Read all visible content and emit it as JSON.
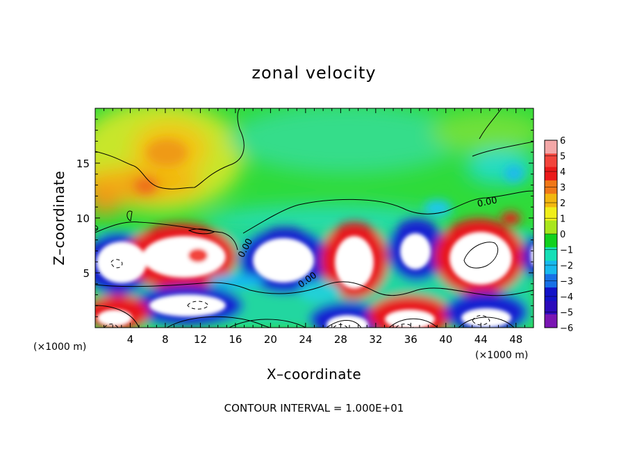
{
  "chart_data": {
    "type": "heatmap",
    "title": "zonal velocity",
    "xlabel": "X–coordinate",
    "ylabel": "Z–coordinate",
    "x_unit": "(×1000 m)",
    "z_unit": "(×1000 m)",
    "xlim": [
      0,
      50
    ],
    "ylim": [
      0,
      20
    ],
    "xticks": [
      "4",
      "8",
      "12",
      "16",
      "20",
      "24",
      "28",
      "32",
      "36",
      "40",
      "44",
      "48"
    ],
    "xtick_values": [
      4,
      8,
      12,
      16,
      20,
      24,
      28,
      32,
      36,
      40,
      44,
      48
    ],
    "yticks": [
      "5",
      "10",
      "15"
    ],
    "ytick_values": [
      5,
      10,
      15
    ],
    "colorbar": {
      "range": [
        -6,
        6
      ],
      "ticks": [
        "6",
        "5",
        "4",
        "3",
        "2",
        "1",
        "0",
        "−1",
        "−2",
        "−3",
        "−4",
        "−5",
        "−6"
      ],
      "colors": [
        "#f3a7a7",
        "#f2453c",
        "#ea1a1a",
        "#f07818",
        "#f2b70f",
        "#f0ee1a",
        "#a9e61d",
        "#12d11f",
        "#16dfb7",
        "#18b9ee",
        "#1770e6",
        "#1212c8",
        "#2b0bbb",
        "#7a16b3"
      ]
    },
    "contour_labels": [
      "0.00",
      "0.00",
      "0.00"
    ],
    "footer": "CONTOUR INTERVAL = 1.000E+01",
    "features": [
      {
        "x": 4,
        "z": 5.5,
        "value": -7,
        "label": "white cell, blue rim"
      },
      {
        "x": 10,
        "z": 6.2,
        "value": 7,
        "label": "white cell, red rim"
      },
      {
        "x": 11,
        "z": 2,
        "value": -7,
        "label": "white cell, blue rim"
      },
      {
        "x": 2,
        "z": 1.2,
        "value": 7,
        "label": "white cell, red rim"
      },
      {
        "x": 21,
        "z": 6.5,
        "value": -7,
        "label": "white cell, blue rim"
      },
      {
        "x": 28,
        "z": 6,
        "value": 7,
        "label": "white cell, red rim"
      },
      {
        "x": 28,
        "z": 1,
        "value": -7,
        "label": "white cell, blue rim"
      },
      {
        "x": 36,
        "z": 7,
        "value": -7,
        "label": "white cell, blue rim"
      },
      {
        "x": 36.5,
        "z": 1.5,
        "value": 7,
        "label": "white cell, red rim"
      },
      {
        "x": 44,
        "z": 6,
        "value": 7,
        "label": "white cell, red rim"
      },
      {
        "x": 44.5,
        "z": 1.2,
        "value": -7,
        "label": "white cell, blue rim"
      },
      {
        "x": 49.5,
        "z": 6,
        "value": -7,
        "label": "white cell, blue rim"
      },
      {
        "x": 10,
        "z": 13,
        "value": 3,
        "label": "orange band"
      },
      {
        "x": 46,
        "z": 10,
        "value": 4,
        "label": "red patch"
      }
    ]
  }
}
